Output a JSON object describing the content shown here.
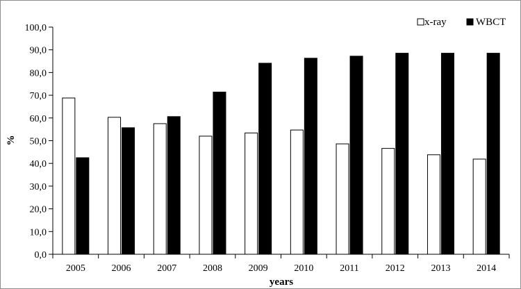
{
  "chart_data": {
    "type": "bar",
    "categories": [
      "2005",
      "2006",
      "2007",
      "2008",
      "2009",
      "2010",
      "2011",
      "2012",
      "2013",
      "2014"
    ],
    "series": [
      {
        "name": "x-ray",
        "values": [
          68.8,
          60.3,
          57.5,
          52.0,
          53.4,
          54.7,
          48.6,
          46.6,
          43.8,
          41.9
        ],
        "fill": "#ffffff",
        "stroke": "#000000"
      },
      {
        "name": "WBCT",
        "values": [
          42.5,
          55.7,
          60.6,
          71.4,
          84.1,
          86.3,
          87.2,
          88.5,
          88.5,
          88.5
        ],
        "fill": "#000000",
        "stroke": "#000000"
      }
    ],
    "xlabel": "years",
    "ylabel": "%",
    "ylim": [
      0,
      100
    ],
    "yticks": [
      "0,0",
      "10,0",
      "20,0",
      "30,0",
      "40,0",
      "50,0",
      "60,0",
      "70,0",
      "80,0",
      "90,0",
      "100,0"
    ],
    "grid": false,
    "legend": "top-right"
  }
}
